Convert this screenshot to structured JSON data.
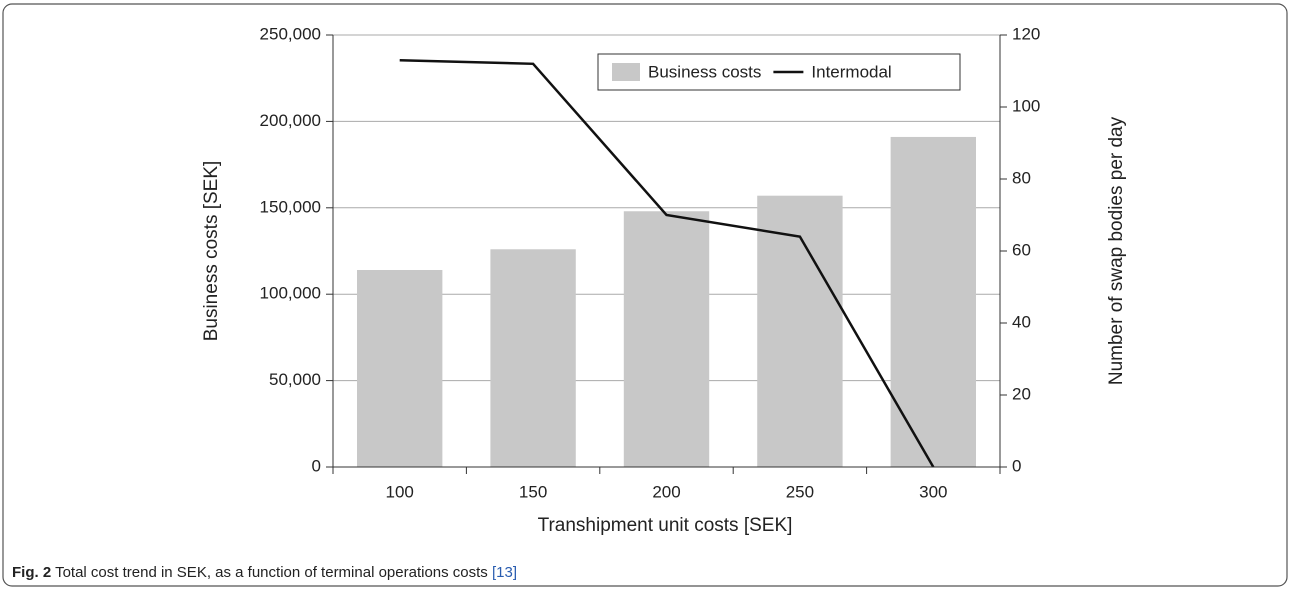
{
  "chart_data": {
    "type": "bar",
    "xlabel": "Transhipment unit costs [SEK]",
    "ylabel": "Business costs [SEK]",
    "y2label": "Number of swap bodies per day",
    "categories": [
      "100",
      "150",
      "200",
      "250",
      "300"
    ],
    "series": [
      {
        "name": "Business costs",
        "type": "bar",
        "color": "#c8c8c8",
        "values": [
          114000,
          126000,
          148000,
          157000,
          191000
        ]
      },
      {
        "name": "Intermodal",
        "type": "line",
        "axis": "y2",
        "color": "#111111",
        "values": [
          113,
          112,
          70,
          64,
          0
        ]
      }
    ],
    "ylim": [
      0,
      250000
    ],
    "yticks": [
      0,
      {
        "value": 50000,
        "label": "50,000"
      },
      {
        "value": 100000,
        "label": "100,000"
      },
      {
        "value": 150000,
        "label": "150,000"
      },
      {
        "value": 200000,
        "label": "200,000"
      },
      {
        "value": 250000,
        "label": "250,000"
      }
    ],
    "y2lim": [
      0,
      120
    ],
    "y2ticks": [
      0,
      20,
      40,
      60,
      80,
      100,
      120
    ],
    "grid": true,
    "legend": "upper right"
  },
  "caption": {
    "label": "Fig. 2",
    "text": "Total cost trend in SEK, as a function of terminal operations costs",
    "ref": "[13]"
  }
}
